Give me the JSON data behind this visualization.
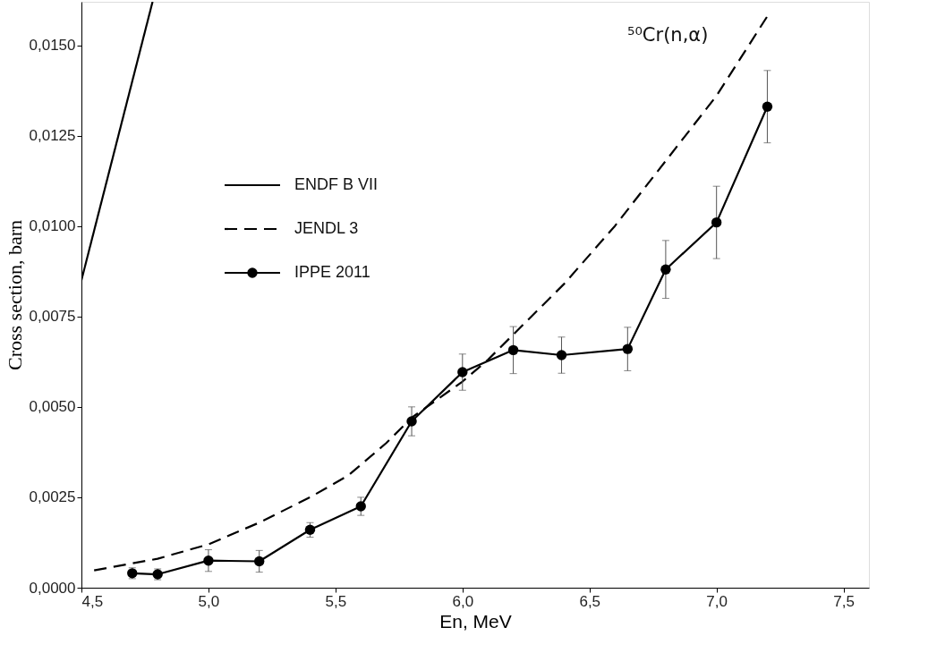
{
  "chart_data": {
    "type": "line",
    "xlabel": "En, MeV",
    "ylabel": "Cross section, barn",
    "annotations": [
      "⁵⁰Cr(n,α)"
    ],
    "xlim": [
      4.5,
      7.6
    ],
    "ylim": [
      0,
      0.0162
    ],
    "xticks": [
      {
        "value": 4.5,
        "label": "4,5"
      },
      {
        "value": 5.0,
        "label": "5,0"
      },
      {
        "value": 5.5,
        "label": "5,5"
      },
      {
        "value": 6.0,
        "label": "6,0"
      },
      {
        "value": 6.5,
        "label": "6,5"
      },
      {
        "value": 7.0,
        "label": "7,0"
      },
      {
        "value": 7.5,
        "label": "7,5"
      }
    ],
    "yticks": [
      {
        "value": 0,
        "label": "0,0000"
      },
      {
        "value": 0.0025,
        "label": "0,0025"
      },
      {
        "value": 0.005,
        "label": "0,0050"
      },
      {
        "value": 0.0075,
        "label": "0,0075"
      },
      {
        "value": 0.01,
        "label": "0,0100"
      },
      {
        "value": 0.0125,
        "label": "0,0125"
      },
      {
        "value": 0.015,
        "label": "0,0150"
      }
    ],
    "grid": false,
    "legend": "top left",
    "series": [
      {
        "name": "ENDF B VII",
        "color": "#000000",
        "line_style": "solid",
        "marker": "none",
        "x": [
          4.5,
          4.78
        ],
        "values": [
          0.0085,
          0.0162
        ]
      },
      {
        "name": "JENDL 3",
        "color": "#000000",
        "line_style": "dashed",
        "marker": "none",
        "x": [
          4.55,
          4.8,
          5.0,
          5.2,
          5.4,
          5.55,
          5.7,
          5.8,
          6.0,
          6.1,
          6.2,
          6.4,
          6.6,
          6.8,
          7.0,
          7.2
        ],
        "values": [
          0.00048,
          0.0008,
          0.0012,
          0.0018,
          0.0025,
          0.0031,
          0.004,
          0.0047,
          0.0057,
          0.0063,
          0.007,
          0.0084,
          0.01,
          0.0118,
          0.0136,
          0.0158
        ]
      },
      {
        "name": "IPPE 2011",
        "color": "#000000",
        "line_style": "solid",
        "marker": "circle",
        "x": [
          4.7,
          4.8,
          5.0,
          5.2,
          5.4,
          5.6,
          5.8,
          6.0,
          6.2,
          6.39,
          6.65,
          6.8,
          7.0,
          7.2
        ],
        "values": [
          0.0004,
          0.00037,
          0.00075,
          0.00073,
          0.0016,
          0.00225,
          0.0046,
          0.00596,
          0.00657,
          0.00643,
          0.0066,
          0.0088,
          0.0101,
          0.0133
        ],
        "errors": [
          0.00015,
          0.00015,
          0.0003,
          0.0003,
          0.0002,
          0.00025,
          0.0004,
          0.0005,
          0.00065,
          0.0005,
          0.0006,
          0.0008,
          0.001,
          0.001
        ]
      }
    ]
  }
}
